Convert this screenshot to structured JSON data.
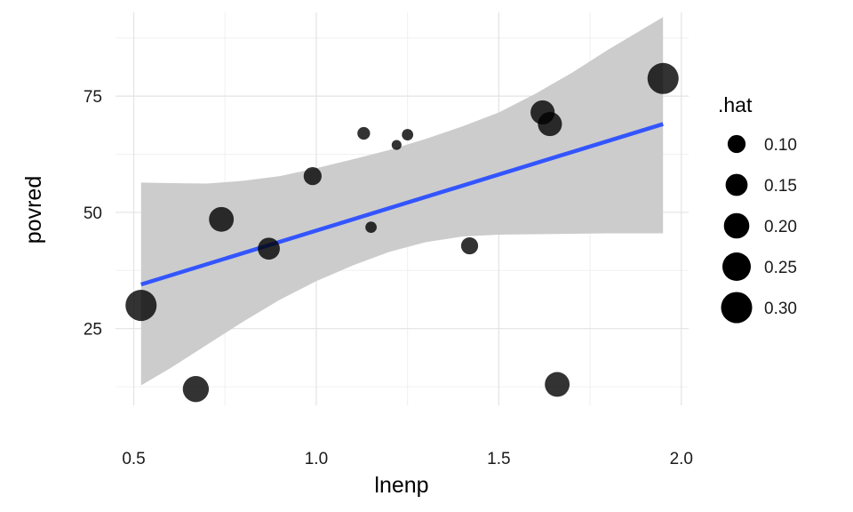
{
  "chart_data": {
    "type": "scatter",
    "xlabel": "lnenp",
    "ylabel": "povred",
    "xlim": [
      0.45,
      2.02
    ],
    "ylim": [
      8.5,
      93
    ],
    "xticks": [
      0.5,
      1.0,
      1.5,
      2.0
    ],
    "xtick_labels": [
      "0.5",
      "1.0",
      "1.5",
      "2.0"
    ],
    "yticks": [
      25,
      50,
      75
    ],
    "ytick_labels": [
      "25",
      "50",
      "75"
    ],
    "grid": true,
    "legend": {
      "title": ".hat",
      "position": "right",
      "entries": [
        {
          "label": "0.10",
          "value": 0.1
        },
        {
          "label": "0.15",
          "value": 0.15
        },
        {
          "label": "0.20",
          "value": 0.2
        },
        {
          "label": "0.25",
          "value": 0.25
        },
        {
          "label": "0.30",
          "value": 0.3
        }
      ]
    },
    "points": [
      {
        "x": 0.52,
        "y": 30.0,
        "hat": 0.3
      },
      {
        "x": 0.67,
        "y": 12.0,
        "hat": 0.21
      },
      {
        "x": 0.74,
        "y": 48.5,
        "hat": 0.19
      },
      {
        "x": 0.87,
        "y": 42.2,
        "hat": 0.15
      },
      {
        "x": 0.99,
        "y": 57.8,
        "hat": 0.1
      },
      {
        "x": 1.13,
        "y": 67.0,
        "hat": 0.05
      },
      {
        "x": 1.15,
        "y": 46.8,
        "hat": 0.04
      },
      {
        "x": 1.22,
        "y": 64.5,
        "hat": 0.03
      },
      {
        "x": 1.25,
        "y": 66.7,
        "hat": 0.04
      },
      {
        "x": 1.42,
        "y": 42.8,
        "hat": 0.09
      },
      {
        "x": 1.62,
        "y": 71.5,
        "hat": 0.18
      },
      {
        "x": 1.64,
        "y": 69.0,
        "hat": 0.18
      },
      {
        "x": 1.66,
        "y": 13.0,
        "hat": 0.19
      },
      {
        "x": 1.95,
        "y": 78.8,
        "hat": 0.3
      }
    ],
    "fit": {
      "x": [
        0.52,
        1.95
      ],
      "y": [
        34.5,
        69.0
      ],
      "color": "#3355ff"
    },
    "confidence_band": {
      "x": [
        0.52,
        0.6,
        0.7,
        0.8,
        0.9,
        1.0,
        1.1,
        1.2,
        1.3,
        1.4,
        1.5,
        1.6,
        1.7,
        1.8,
        1.95
      ],
      "upper": [
        56.4,
        56.3,
        56.2,
        56.8,
        57.8,
        59.5,
        61.4,
        63.4,
        65.8,
        68.5,
        71.5,
        75.5,
        80.0,
        85.0,
        92.0
      ],
      "lower": [
        12.8,
        16.5,
        21.5,
        26.5,
        31.2,
        35.2,
        38.6,
        41.5,
        43.6,
        44.8,
        45.2,
        45.3,
        45.4,
        45.5,
        45.5
      ],
      "color": "#cccccc"
    },
    "point_color": "#000000"
  }
}
